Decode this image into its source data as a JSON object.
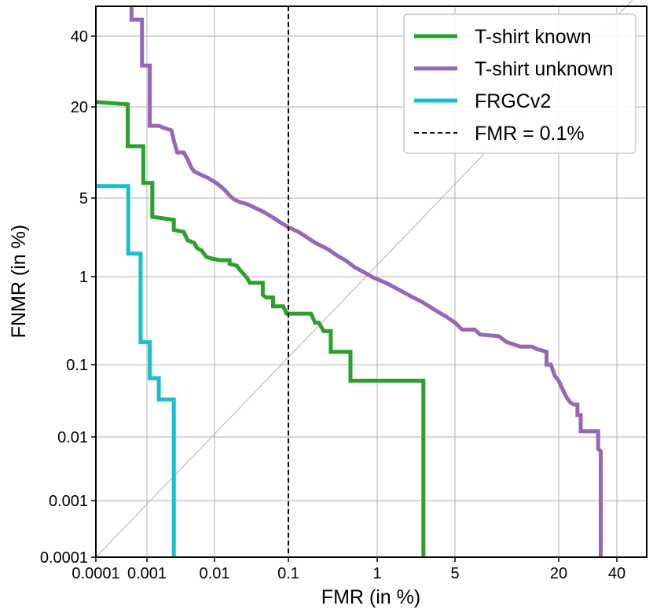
{
  "chart_data": {
    "type": "line",
    "xlabel": "FMR (in %)",
    "ylabel": "FNMR (in %)",
    "x_scale": "log",
    "y_scale": "log",
    "xlim": [
      0.0001,
      80
    ],
    "ylim": [
      0.0001,
      60
    ],
    "grid": true,
    "legend_position": "top-right",
    "x_ticks": [
      {
        "value": 0.0001,
        "label": "0.0001"
      },
      {
        "value": 0.001,
        "label": "0.001"
      },
      {
        "value": 0.01,
        "label": "0.01"
      },
      {
        "value": 0.1,
        "label": "0.1"
      },
      {
        "value": 1,
        "label": "1"
      },
      {
        "value": 5,
        "label": "5"
      },
      {
        "value": 20,
        "label": "20"
      },
      {
        "value": 40,
        "label": "40"
      }
    ],
    "y_ticks": [
      {
        "value": 0.0001,
        "label": "0.0001"
      },
      {
        "value": 0.001,
        "label": "0.001"
      },
      {
        "value": 0.01,
        "label": "0.01"
      },
      {
        "value": 0.1,
        "label": "0.1"
      },
      {
        "value": 1,
        "label": "1"
      },
      {
        "value": 5,
        "label": "5"
      },
      {
        "value": 20,
        "label": "20"
      },
      {
        "value": 40,
        "label": "40"
      }
    ],
    "diagonal": {
      "color": "#b3b3b3"
    },
    "threshold": {
      "label": "FMR = 0.1%",
      "x": 0.1,
      "color": "#000000",
      "style": "dashed"
    },
    "series": [
      {
        "name": "T-shirt known",
        "color": "#2ca02c",
        "points": [
          [
            0.0001,
            21
          ],
          [
            0.00042,
            20.5
          ],
          [
            0.00042,
            11
          ],
          [
            0.00085,
            11
          ],
          [
            0.00085,
            6.3
          ],
          [
            0.0012,
            6.3
          ],
          [
            0.0012,
            3.4
          ],
          [
            0.0025,
            3.2
          ],
          [
            0.0025,
            2.6
          ],
          [
            0.0035,
            2.5
          ],
          [
            0.004,
            2.1
          ],
          [
            0.005,
            2
          ],
          [
            0.0055,
            1.8
          ],
          [
            0.0065,
            1.7
          ],
          [
            0.0075,
            1.5
          ],
          [
            0.009,
            1.45
          ],
          [
            0.012,
            1.4
          ],
          [
            0.016,
            1.4
          ],
          [
            0.016,
            1.3
          ],
          [
            0.02,
            1.25
          ],
          [
            0.022,
            1.15
          ],
          [
            0.025,
            1.05
          ],
          [
            0.028,
            0.95
          ],
          [
            0.03,
            0.85
          ],
          [
            0.045,
            0.85
          ],
          [
            0.045,
            0.62
          ],
          [
            0.05,
            0.58
          ],
          [
            0.062,
            0.58
          ],
          [
            0.062,
            0.46
          ],
          [
            0.085,
            0.46
          ],
          [
            0.095,
            0.38
          ],
          [
            0.18,
            0.38
          ],
          [
            0.2,
            0.3
          ],
          [
            0.22,
            0.3
          ],
          [
            0.25,
            0.24
          ],
          [
            0.3,
            0.24
          ],
          [
            0.3,
            0.14
          ],
          [
            0.5,
            0.14
          ],
          [
            0.5,
            0.06
          ],
          [
            2.6,
            0.06
          ],
          [
            2.6,
            0.0001
          ]
        ]
      },
      {
        "name": "T-shirt unknown",
        "color": "#9467bd",
        "points": [
          [
            0.0005,
            60
          ],
          [
            0.0005,
            50
          ],
          [
            0.0008,
            50
          ],
          [
            0.0008,
            30
          ],
          [
            0.0011,
            30
          ],
          [
            0.0011,
            15
          ],
          [
            0.0015,
            15
          ],
          [
            0.0018,
            14.5
          ],
          [
            0.0023,
            14
          ],
          [
            0.0025,
            12
          ],
          [
            0.0028,
            10
          ],
          [
            0.0035,
            10
          ],
          [
            0.004,
            9
          ],
          [
            0.0045,
            8
          ],
          [
            0.005,
            7.5
          ],
          [
            0.006,
            7.2
          ],
          [
            0.008,
            6.8
          ],
          [
            0.01,
            6.4
          ],
          [
            0.012,
            6
          ],
          [
            0.014,
            5.6
          ],
          [
            0.016,
            5.2
          ],
          [
            0.018,
            4.9
          ],
          [
            0.022,
            4.6
          ],
          [
            0.028,
            4.4
          ],
          [
            0.035,
            4.1
          ],
          [
            0.045,
            3.8
          ],
          [
            0.06,
            3.4
          ],
          [
            0.08,
            3
          ],
          [
            0.1,
            2.75
          ],
          [
            0.13,
            2.5
          ],
          [
            0.16,
            2.25
          ],
          [
            0.2,
            2
          ],
          [
            0.28,
            1.75
          ],
          [
            0.35,
            1.55
          ],
          [
            0.45,
            1.38
          ],
          [
            0.55,
            1.22
          ],
          [
            0.7,
            1.1
          ],
          [
            0.9,
            0.98
          ],
          [
            1.2,
            0.85
          ],
          [
            1.6,
            0.7
          ],
          [
            2.0,
            0.6
          ],
          [
            2.5,
            0.52
          ],
          [
            3.0,
            0.45
          ],
          [
            3.5,
            0.4
          ],
          [
            4.2,
            0.35
          ],
          [
            5.0,
            0.3
          ],
          [
            5.5,
            0.25
          ],
          [
            6.5,
            0.25
          ],
          [
            7,
            0.22
          ],
          [
            9,
            0.21
          ],
          [
            10,
            0.18
          ],
          [
            12,
            0.16
          ],
          [
            14,
            0.16
          ],
          [
            15,
            0.15
          ],
          [
            17,
            0.14
          ],
          [
            17,
            0.1
          ],
          [
            18,
            0.1
          ],
          [
            19,
            0.07
          ],
          [
            20,
            0.06
          ],
          [
            21,
            0.045
          ],
          [
            22,
            0.035
          ],
          [
            23,
            0.03
          ],
          [
            24,
            0.028
          ],
          [
            25,
            0.028
          ],
          [
            25,
            0.02
          ],
          [
            26,
            0.02
          ],
          [
            26,
            0.012
          ],
          [
            32,
            0.012
          ],
          [
            32,
            0.0065
          ],
          [
            33,
            0.006
          ],
          [
            33,
            0.0001
          ]
        ]
      },
      {
        "name": "FRGCv2",
        "color": "#17becf",
        "points": [
          [
            0.0001,
            6
          ],
          [
            0.00043,
            6
          ],
          [
            0.00043,
            1.6
          ],
          [
            0.00075,
            1.6
          ],
          [
            0.00075,
            0.18
          ],
          [
            0.0011,
            0.18
          ],
          [
            0.0011,
            0.065
          ],
          [
            0.0015,
            0.065
          ],
          [
            0.0015,
            0.033
          ],
          [
            0.0025,
            0.033
          ],
          [
            0.0025,
            0.0001
          ]
        ]
      }
    ]
  },
  "legend": [
    {
      "label": "T-shirt known",
      "color": "#2ca02c",
      "style": "solid"
    },
    {
      "label": "T-shirt unknown",
      "color": "#9467bd",
      "style": "solid"
    },
    {
      "label": "FRGCv2",
      "color": "#17becf",
      "style": "solid"
    },
    {
      "label": "FMR = 0.1%",
      "color": "#000000",
      "style": "dashed"
    }
  ]
}
